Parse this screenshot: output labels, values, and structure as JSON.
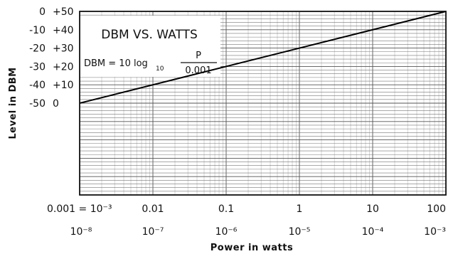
{
  "chart_data": {
    "type": "line",
    "title": "DBM VS. WATTS",
    "formula": {
      "lhs": "DBM = 10 log",
      "sub": "10",
      "numerator": "P",
      "denominator": "0.001"
    },
    "xlabel": "Power in watts",
    "ylabel": "Level in DBM",
    "xscale": "log",
    "x_top_range_watts": [
      0.001,
      100
    ],
    "x_bottom_range_watts": [
      1e-08,
      0.001
    ],
    "ylim": [
      -50,
      50
    ],
    "y_left_ticks": [
      "-50",
      "-40",
      "-30",
      "-20",
      "-10",
      "0"
    ],
    "y_right_ticks": [
      "0",
      "+10",
      "+20",
      "+30",
      "+40",
      "+50"
    ],
    "x_top_ticks": [
      "0.001 = 10⁻³",
      "0.01",
      "0.1",
      "1",
      "10",
      "100"
    ],
    "x_bottom_ticks": [
      "10⁻⁸",
      "10⁻⁷",
      "10⁻⁶",
      "10⁻⁵",
      "10⁻⁴",
      "10⁻³"
    ],
    "grid": true,
    "series": [
      {
        "x_watts": [
          0.001,
          0.01,
          0.1,
          1,
          10,
          100
        ],
        "y_dbm": [
          0,
          10,
          20,
          30,
          40,
          50
        ]
      }
    ]
  }
}
